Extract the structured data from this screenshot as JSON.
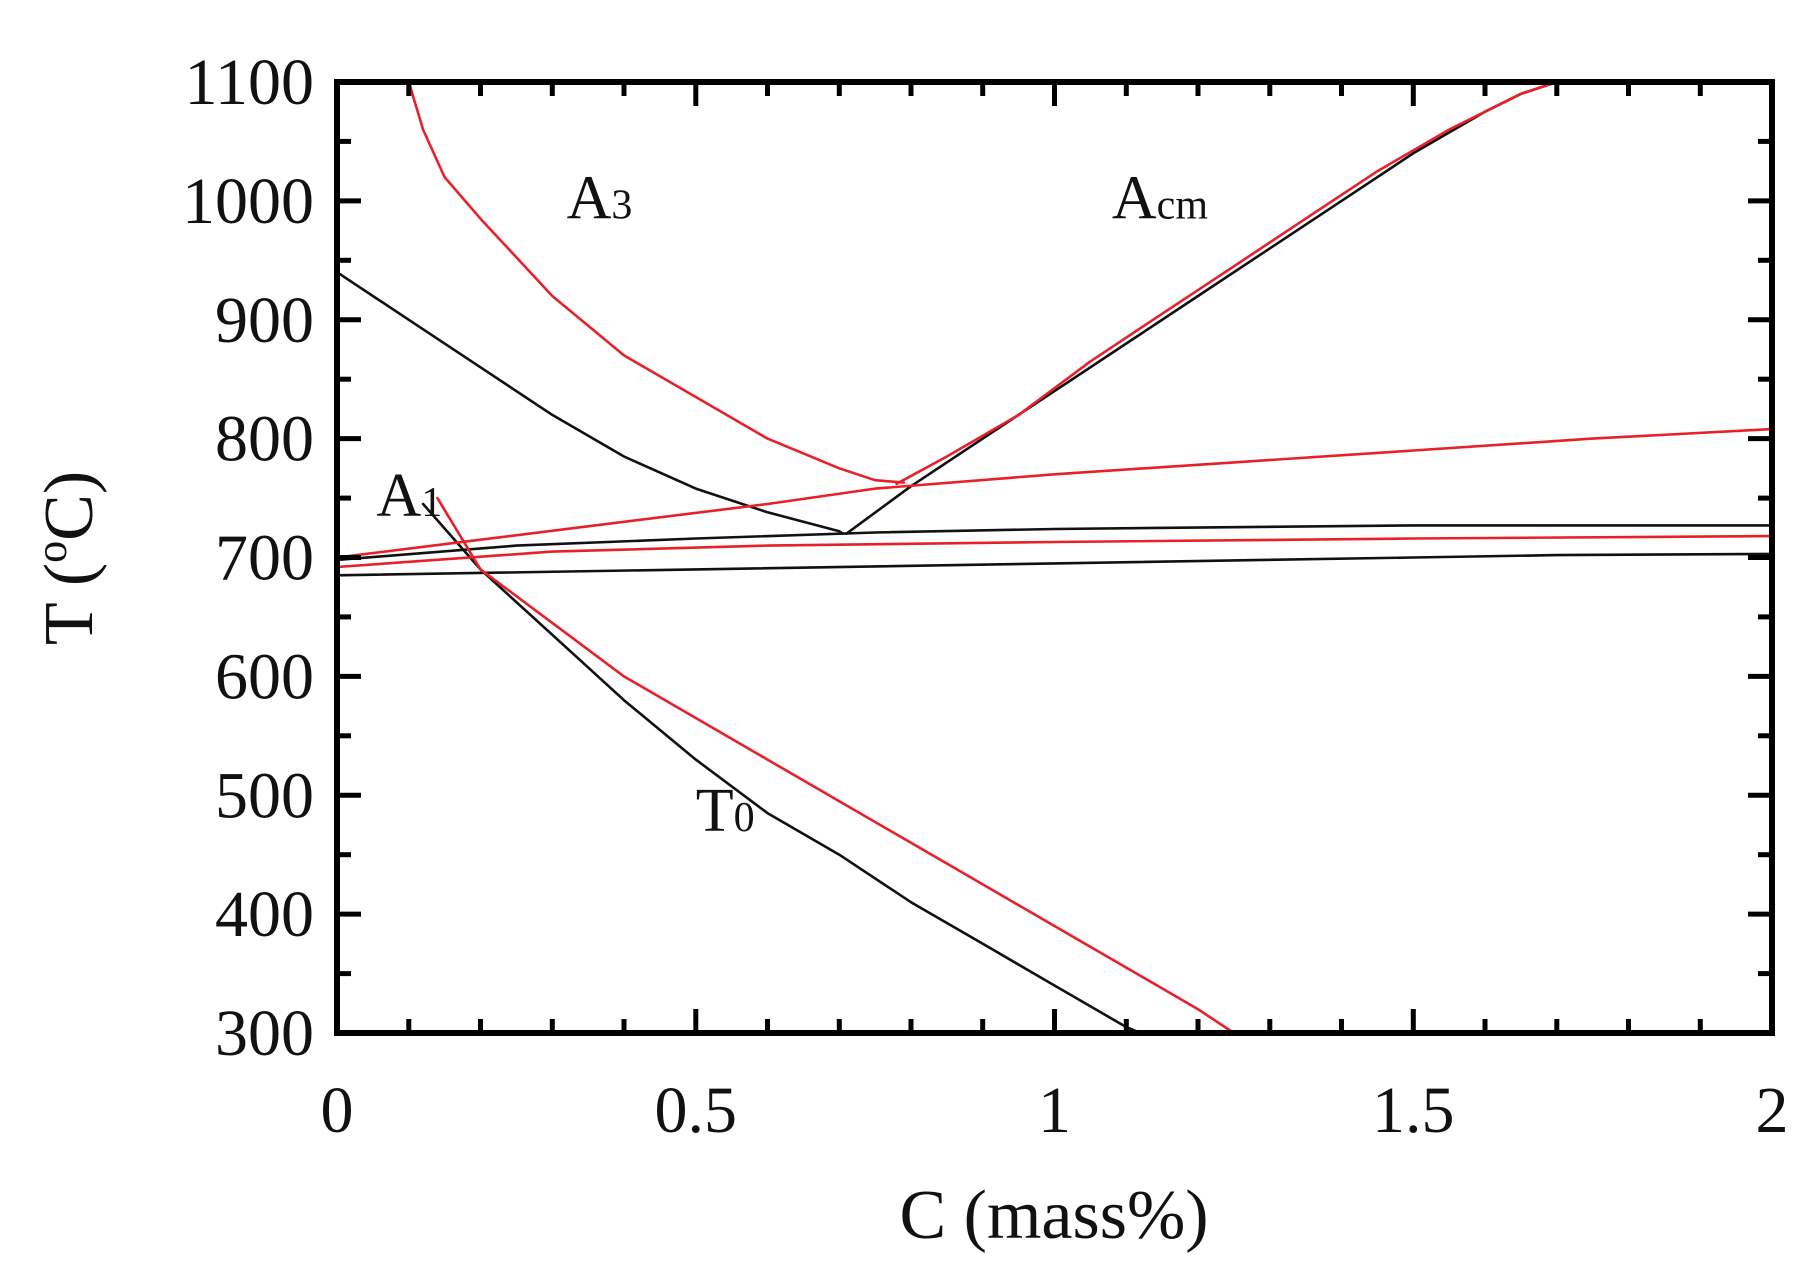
{
  "chart_data": {
    "type": "line",
    "title": "",
    "xlabel": "C (mass%)",
    "ylabel_main": "T (",
    "ylabel_sup": "o",
    "ylabel_end": "C)",
    "xlim": [
      0,
      2
    ],
    "ylim": [
      300,
      1100
    ],
    "xticks": [
      0,
      0.5,
      1,
      1.5,
      2
    ],
    "xtick_labels": [
      "0",
      "0.5",
      "1",
      "1.5",
      "2"
    ],
    "yticks": [
      300,
      400,
      500,
      600,
      700,
      800,
      900,
      1000,
      1100
    ],
    "ytick_labels": [
      "300",
      "400",
      "500",
      "600",
      "700",
      "800",
      "900",
      "1000",
      "1100"
    ],
    "grid": false,
    "colors": {
      "red": "#e8202a",
      "black": "#111111",
      "blue": "#2a2a6e"
    },
    "annotations": [
      {
        "base": "A",
        "sub": "3",
        "x": 0.32,
        "y": 985
      },
      {
        "base": "A",
        "sub": "cm",
        "x": 1.08,
        "y": 985
      },
      {
        "base": "A",
        "sub": "1",
        "x": 0.055,
        "y": 735
      },
      {
        "base": "T",
        "sub": "0",
        "x": 0.5,
        "y": 470
      }
    ],
    "series": [
      {
        "name": "A3 (black)",
        "color": "black",
        "points": [
          [
            0,
            940
          ],
          [
            0.1,
            900
          ],
          [
            0.2,
            860
          ],
          [
            0.3,
            820
          ],
          [
            0.4,
            785
          ],
          [
            0.5,
            758
          ],
          [
            0.6,
            738
          ],
          [
            0.7,
            722
          ],
          [
            0.705,
            720
          ]
        ]
      },
      {
        "name": "Acm (black)",
        "color": "black",
        "points": [
          [
            0.71,
            720
          ],
          [
            0.8,
            760
          ],
          [
            0.9,
            800
          ],
          [
            1.0,
            840
          ],
          [
            1.1,
            880
          ],
          [
            1.2,
            920
          ],
          [
            1.3,
            960
          ],
          [
            1.4,
            1000
          ],
          [
            1.5,
            1040
          ],
          [
            1.6,
            1075
          ],
          [
            1.65,
            1090
          ],
          [
            1.7,
            1100
          ]
        ]
      },
      {
        "name": "A1 upper (black)",
        "color": "black",
        "points": [
          [
            0,
            698
          ],
          [
            0.25,
            710
          ],
          [
            0.5,
            716
          ],
          [
            0.75,
            721
          ],
          [
            1.0,
            724
          ],
          [
            1.5,
            727
          ],
          [
            2.0,
            727
          ]
        ]
      },
      {
        "name": "A1 lower (black)",
        "color": "black",
        "points": [
          [
            0,
            685
          ],
          [
            0.5,
            690
          ],
          [
            1.0,
            695
          ],
          [
            1.5,
            700
          ],
          [
            1.7,
            702
          ],
          [
            2.0,
            703
          ]
        ]
      },
      {
        "name": "T0 (black)",
        "color": "black",
        "points": [
          [
            0.12,
            745
          ],
          [
            0.2,
            690
          ],
          [
            0.3,
            635
          ],
          [
            0.4,
            580
          ],
          [
            0.5,
            530
          ],
          [
            0.6,
            485
          ],
          [
            0.7,
            450
          ],
          [
            0.8,
            410
          ],
          [
            0.9,
            375
          ],
          [
            1.0,
            340
          ],
          [
            1.1,
            305
          ],
          [
            1.12,
            300
          ]
        ]
      },
      {
        "name": "A3 (red)",
        "color": "red",
        "points": [
          [
            0.1,
            1100
          ],
          [
            0.12,
            1060
          ],
          [
            0.15,
            1020
          ],
          [
            0.2,
            985
          ],
          [
            0.3,
            920
          ],
          [
            0.4,
            870
          ],
          [
            0.5,
            835
          ],
          [
            0.6,
            800
          ],
          [
            0.7,
            775
          ],
          [
            0.75,
            765
          ],
          [
            0.79,
            763
          ]
        ]
      },
      {
        "name": "Acm (red)",
        "color": "red",
        "points": [
          [
            0.78,
            762
          ],
          [
            0.85,
            785
          ],
          [
            0.95,
            820
          ],
          [
            1.05,
            865
          ],
          [
            1.15,
            905
          ],
          [
            1.25,
            945
          ],
          [
            1.35,
            985
          ],
          [
            1.45,
            1025
          ],
          [
            1.55,
            1060
          ],
          [
            1.65,
            1090
          ],
          [
            1.7,
            1100
          ]
        ]
      },
      {
        "name": "A1 Acm-ext (red)",
        "color": "red",
        "points": [
          [
            0,
            700
          ],
          [
            0.2,
            715
          ],
          [
            0.4,
            730
          ],
          [
            0.6,
            745
          ],
          [
            0.75,
            758
          ],
          [
            1.0,
            770
          ],
          [
            1.25,
            780
          ],
          [
            1.5,
            790
          ],
          [
            1.75,
            800
          ],
          [
            2.0,
            808
          ]
        ]
      },
      {
        "name": "A1 (red)",
        "color": "red",
        "points": [
          [
            0,
            692
          ],
          [
            0.3,
            705
          ],
          [
            0.6,
            710
          ],
          [
            1.0,
            713
          ],
          [
            1.5,
            716
          ],
          [
            2.0,
            718
          ]
        ]
      },
      {
        "name": "T0 (red)",
        "color": "red",
        "points": [
          [
            0.14,
            750
          ],
          [
            0.2,
            690
          ],
          [
            0.3,
            645
          ],
          [
            0.4,
            600
          ],
          [
            0.5,
            565
          ],
          [
            0.6,
            530
          ],
          [
            0.7,
            495
          ],
          [
            0.8,
            460
          ],
          [
            0.9,
            425
          ],
          [
            1.0,
            390
          ],
          [
            1.1,
            355
          ],
          [
            1.2,
            320
          ],
          [
            1.25,
            300
          ]
        ]
      }
    ]
  }
}
